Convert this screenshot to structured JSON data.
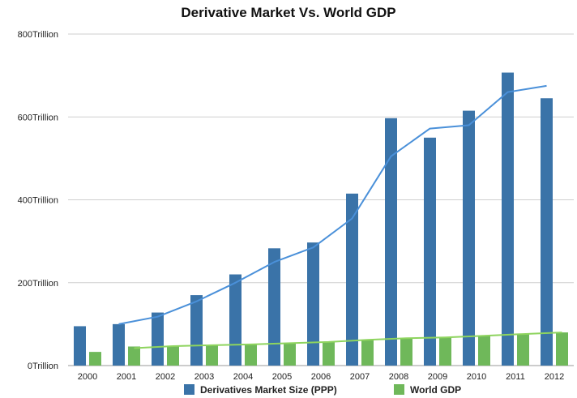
{
  "chart_data": {
    "type": "bar",
    "title": "Derivative Market Vs. World GDP",
    "xlabel": "",
    "ylabel": "",
    "categories": [
      "2000",
      "2001",
      "2002",
      "2003",
      "2004",
      "2005",
      "2006",
      "2007",
      "2008",
      "2009",
      "2010",
      "2011",
      "2012"
    ],
    "ylim": [
      0,
      800
    ],
    "yticks": [
      {
        "value": 0,
        "label": "0Trillion"
      },
      {
        "value": 200,
        "label": "200Trillion"
      },
      {
        "value": 400,
        "label": "400Trillion"
      },
      {
        "value": 600,
        "label": "600Trillion"
      },
      {
        "value": 800,
        "label": "800Trillion"
      }
    ],
    "grid": true,
    "legend_position": "bottom",
    "series": [
      {
        "name": "Derivatives Market Size (PPP)",
        "color": "#3a73a8",
        "values": [
          95,
          100,
          128,
          170,
          220,
          283,
          297,
          415,
          597,
          550,
          615,
          707,
          645
        ]
      },
      {
        "name": "World GDP",
        "color": "#6fb85a",
        "values": [
          33,
          46,
          48,
          49,
          51,
          54,
          57,
          62,
          66,
          68,
          72,
          76,
          80
        ]
      }
    ],
    "trendlines": [
      {
        "series": "Derivatives Market Size (PPP)",
        "color": "#4a90d9",
        "values": [
          null,
          100,
          118,
          155,
          200,
          250,
          285,
          355,
          505,
          572,
          580,
          660,
          675
        ]
      },
      {
        "series": "World GDP",
        "color": "#8ed45e",
        "values": [
          null,
          42,
          47,
          49,
          51,
          54,
          57,
          62,
          66,
          68,
          72,
          76,
          80
        ]
      }
    ]
  }
}
